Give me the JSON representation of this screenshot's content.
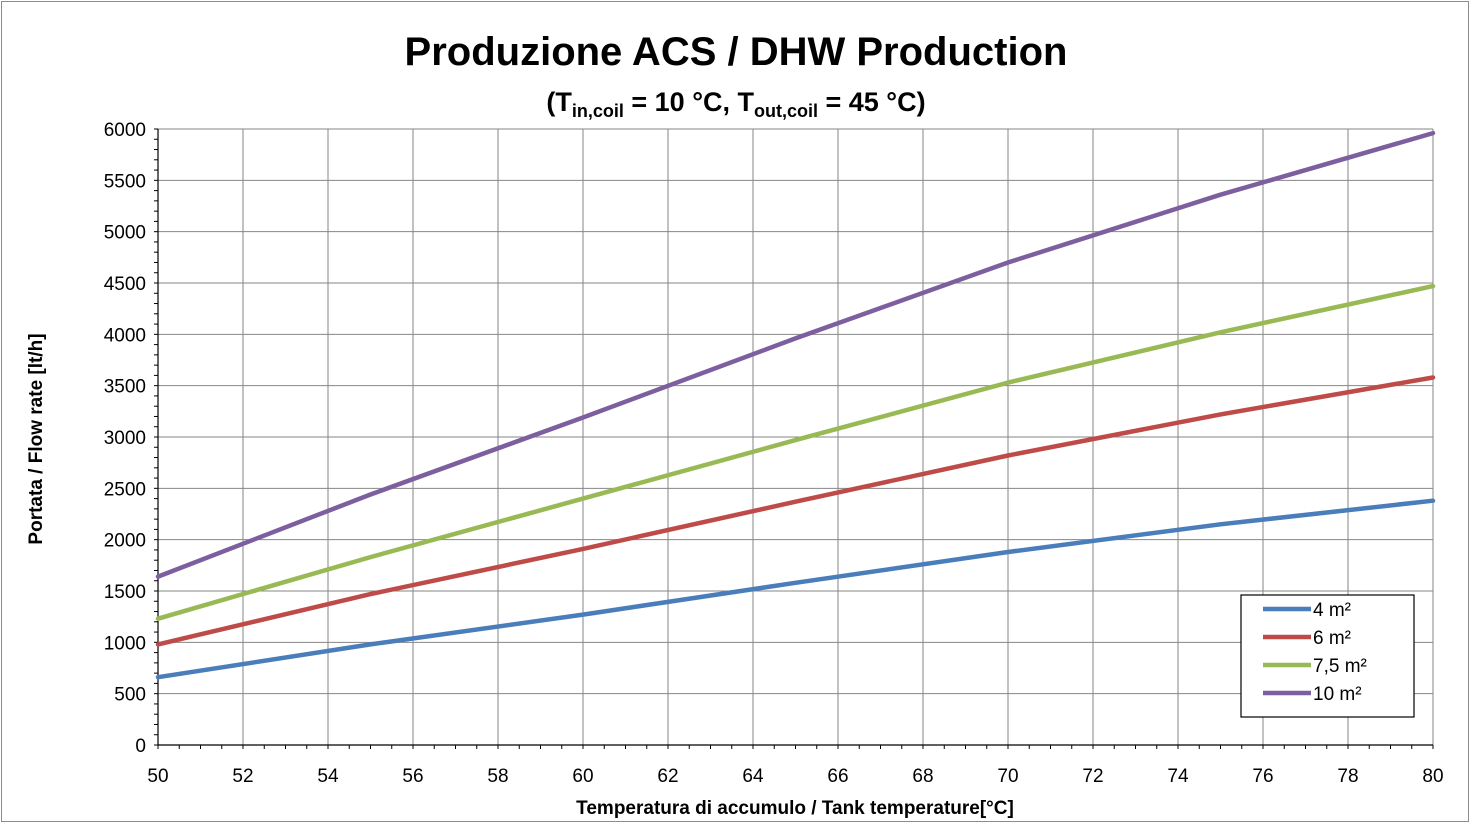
{
  "chart_data": {
    "type": "line",
    "title": "Produzione ACS / DHW Production",
    "subtitle": {
      "open": "(T",
      "in_sub": "in,coil",
      "middle": " = 10 °C, T",
      "out_sub": "out,coil",
      "close": " = 45 °C)"
    },
    "xlabel": "Temperatura di accumulo / Tank temperature[°C]",
    "ylabel": "Portata / Flow rate [lt/h]",
    "xlim": [
      50,
      80
    ],
    "ylim": [
      0,
      6000
    ],
    "x_ticks": [
      50,
      52,
      54,
      56,
      58,
      60,
      62,
      64,
      66,
      68,
      70,
      72,
      74,
      76,
      78,
      80
    ],
    "y_ticks": [
      0,
      500,
      1000,
      1500,
      2000,
      2500,
      3000,
      3500,
      4000,
      4500,
      5000,
      5500,
      6000
    ],
    "grid": true,
    "legend_position": "bottom-right",
    "x": [
      50,
      55,
      60,
      65,
      70,
      75,
      80
    ],
    "series": [
      {
        "name": "4 m²",
        "color": "#4a7ebb",
        "values": [
          660,
          980,
          1270,
          1580,
          1880,
          2150,
          2380
        ]
      },
      {
        "name": "6 m²",
        "color": "#be4b48",
        "values": [
          980,
          1470,
          1910,
          2370,
          2820,
          3220,
          3580
        ]
      },
      {
        "name": "7,5 m²",
        "color": "#98b954",
        "values": [
          1230,
          1830,
          2400,
          2970,
          3530,
          4020,
          4470
        ]
      },
      {
        "name": "10 m²",
        "color": "#7d5fa0",
        "values": [
          1640,
          2440,
          3190,
          3960,
          4700,
          5360,
          5960
        ]
      }
    ]
  }
}
